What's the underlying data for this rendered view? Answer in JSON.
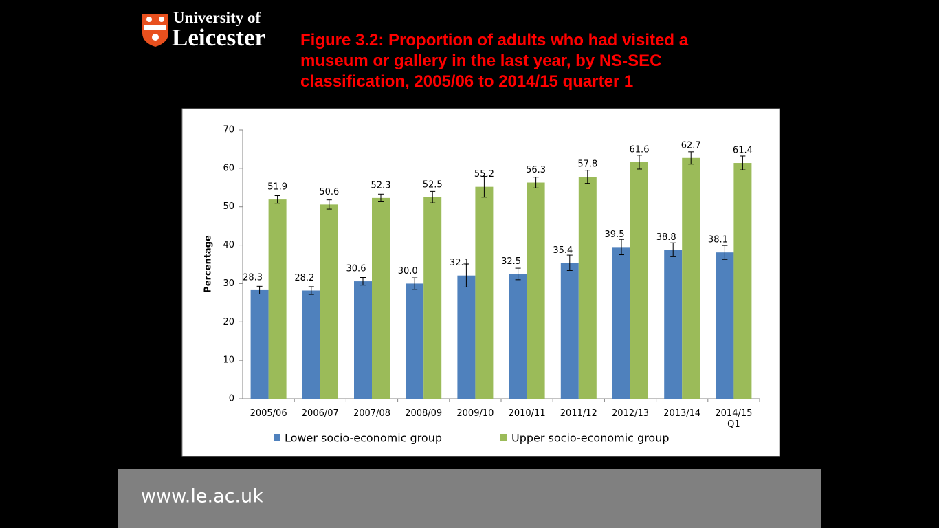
{
  "logo": {
    "line1": "University of",
    "line2": "Leicester"
  },
  "footer": {
    "url": "www.le.ac.uk"
  },
  "chart_data": {
    "type": "bar",
    "title": "Figure 3.2: Proportion of adults who had visited a museum or gallery in the last year, by NS-SEC classification, 2005/06 to 2014/15 quarter 1",
    "ylabel": "Percentage",
    "categories": [
      "2005/06",
      "2006/07",
      "2007/08",
      "2008/09",
      "2009/10",
      "2010/11",
      "2011/12",
      "2012/13",
      "2013/14",
      "2014/15 Q1"
    ],
    "series": [
      {
        "name": "Lower socio-economic group",
        "color": "#4f81bd",
        "values": [
          28.3,
          28.2,
          30.6,
          30.0,
          32.1,
          32.5,
          35.4,
          39.5,
          38.8,
          38.1
        ],
        "value_labels": [
          "28.3",
          "28.2",
          "30.6",
          "30.0",
          "32.1",
          "32.5",
          "35.4",
          "39.5",
          "38.8",
          "38.1"
        ],
        "errors": [
          1.0,
          1.0,
          1.0,
          1.5,
          3.0,
          1.5,
          2.0,
          2.0,
          1.8,
          1.8
        ]
      },
      {
        "name": "Upper socio-economic group",
        "color": "#9bbb59",
        "values": [
          51.9,
          50.6,
          52.3,
          52.5,
          55.2,
          56.3,
          57.8,
          61.6,
          62.7,
          61.4
        ],
        "value_labels": [
          "51.9",
          "50.6",
          "52.3",
          "52.5",
          "55.2",
          "56.3",
          "57.8",
          "61.6",
          "62.7",
          "61.4"
        ],
        "errors": [
          1.0,
          1.2,
          1.0,
          1.5,
          2.7,
          1.4,
          1.7,
          1.8,
          1.6,
          1.8
        ]
      }
    ],
    "ylim": [
      0,
      70
    ],
    "yticks": [
      0,
      10,
      20,
      30,
      40,
      50,
      60,
      70
    ],
    "grid": false,
    "legend": "bottom"
  }
}
